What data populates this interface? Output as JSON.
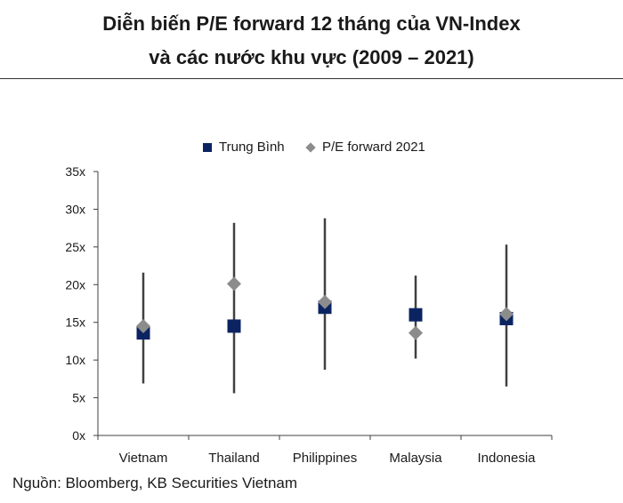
{
  "title": {
    "line1": "Diễn biến P/E forward 12 tháng của VN-Index",
    "line2": "và các nước khu vực (2009 – 2021)"
  },
  "legend": {
    "series1": "Trung Bình",
    "series2": "P/E forward 2021"
  },
  "source": "Nguồn: Bloomberg, KB Securities Vietnam",
  "colors": {
    "mean": "#0b2461",
    "forward": "#8c8c8c",
    "range": "#404040",
    "axis": "#404040"
  },
  "chart_data": {
    "type": "scatter",
    "categories": [
      "Vietnam",
      "Thailand",
      "Philippines",
      "Malaysia",
      "Indonesia"
    ],
    "y_ticks": [
      "0x",
      "5x",
      "10x",
      "15x",
      "20x",
      "25x",
      "30x",
      "35x"
    ],
    "ylim": [
      0,
      35
    ],
    "grid": false,
    "legend_position": "top",
    "range_low": [
      6.9,
      5.6,
      8.7,
      10.2,
      6.5
    ],
    "range_high": [
      21.6,
      28.2,
      28.8,
      21.2,
      25.3
    ],
    "series": [
      {
        "name": "Trung Bình",
        "marker": "square",
        "values": [
          13.6,
          14.5,
          17.0,
          16.0,
          15.5
        ]
      },
      {
        "name": "P/E forward 2021",
        "marker": "diamond",
        "values": [
          14.5,
          20.1,
          17.7,
          13.6,
          16.1
        ]
      }
    ]
  }
}
